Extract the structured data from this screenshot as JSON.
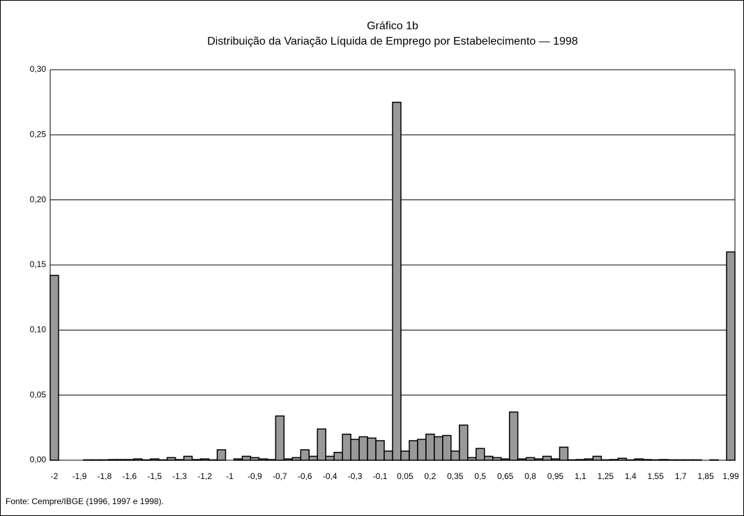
{
  "chart_data": {
    "type": "bar",
    "title": "Gráfico 1b",
    "subtitle": "Distribuição da Variação Líquida de Emprego por Estabelecimento — 1998",
    "source": "Fonte: Cempre/IBGE (1996, 1997 e 1998).",
    "color": "#999999",
    "grid": true,
    "categories": [
      "-2",
      null,
      null,
      "-1,9",
      null,
      null,
      "-1,8",
      null,
      null,
      "-1,6",
      null,
      null,
      "-1,5",
      null,
      null,
      "-1,3",
      null,
      null,
      "-1,2",
      null,
      null,
      "-1",
      null,
      null,
      "-0,9",
      null,
      null,
      "-0,7",
      null,
      null,
      "-0,6",
      null,
      null,
      "-0,4",
      null,
      null,
      "-0,3",
      null,
      null,
      "-0,1",
      null,
      null,
      "0,05",
      null,
      null,
      "0,2",
      null,
      null,
      "0,35",
      null,
      null,
      "0,5",
      null,
      null,
      "0,65",
      null,
      null,
      "0,8",
      null,
      null,
      "0,95",
      null,
      null,
      "1,1",
      null,
      null,
      "1,25",
      null,
      null,
      "1,4",
      null,
      null,
      "1,55",
      null,
      null,
      "1,7",
      null,
      null,
      "1,85",
      null,
      null,
      "1,99"
    ],
    "values": [
      0.142,
      0,
      0,
      0,
      0.0003,
      0.0003,
      0.0003,
      0.0005,
      0.0005,
      0.0005,
      0.001,
      0.0003,
      0.001,
      0.0003,
      0.002,
      0.0005,
      0.003,
      0.0005,
      0.001,
      0.0003,
      0.008,
      0,
      0.001,
      0.003,
      0.002,
      0.001,
      0.0005,
      0.034,
      0.001,
      0.002,
      0.008,
      0.003,
      0.024,
      0.003,
      0.006,
      0.02,
      0.016,
      0.018,
      0.017,
      0.015,
      0.007,
      0.275,
      0.007,
      0.015,
      0.016,
      0.02,
      0.018,
      0.019,
      0.007,
      0.027,
      0.002,
      0.009,
      0.003,
      0.002,
      0.001,
      0.037,
      0.001,
      0.002,
      0.001,
      0.003,
      0.001,
      0.01,
      0.0003,
      0.0005,
      0.001,
      0.003,
      0.0003,
      0.0005,
      0.0015,
      0.0003,
      0.001,
      0.0005,
      0.0003,
      0.0005,
      0.0003,
      0.0003,
      0.0003,
      0.0003,
      0,
      0.0003,
      0,
      0.16
    ],
    "ylim": [
      0,
      0.3
    ],
    "yticks": [
      {
        "value": 0,
        "label": "0,00"
      },
      {
        "value": 0.05,
        "label": "0,05"
      },
      {
        "value": 0.1,
        "label": "0,10"
      },
      {
        "value": 0.15,
        "label": "0,15"
      },
      {
        "value": 0.2,
        "label": "0,20"
      },
      {
        "value": 0.25,
        "label": "0,25"
      },
      {
        "value": 0.3,
        "label": "0,30"
      }
    ]
  }
}
